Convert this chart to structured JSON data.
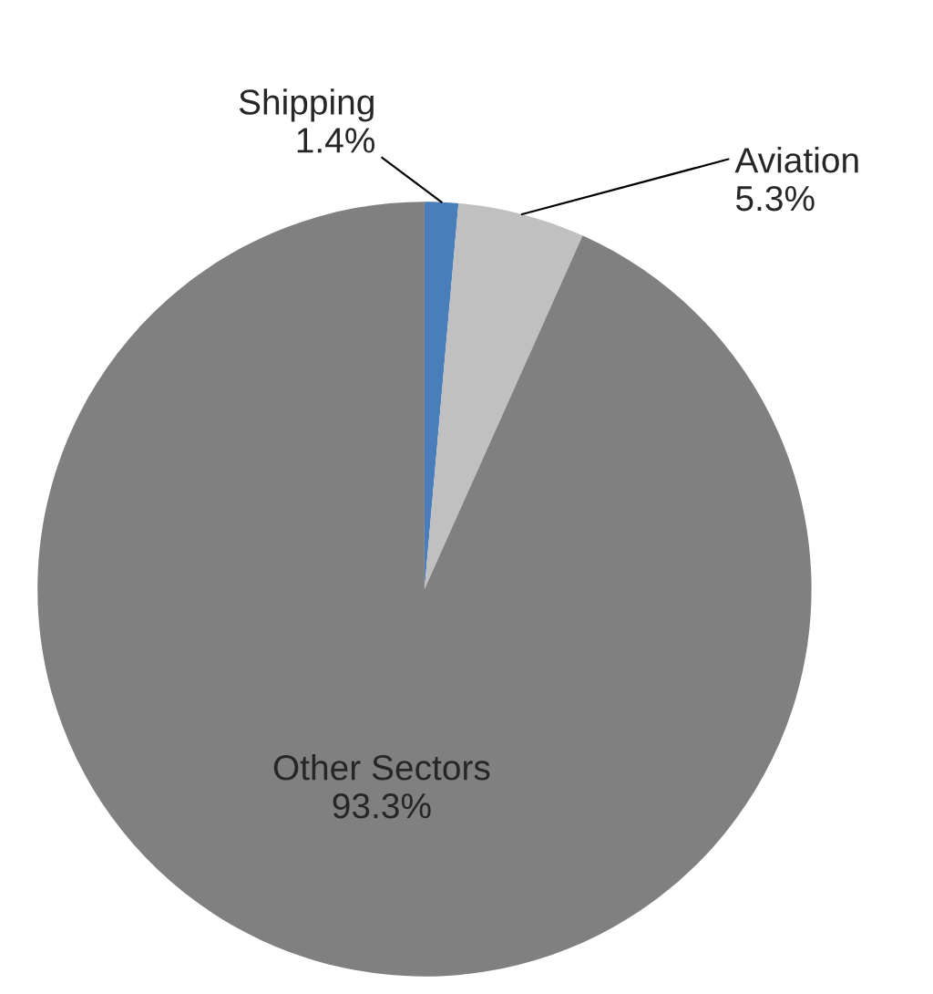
{
  "chart_data": {
    "type": "pie",
    "categories": [
      "Shipping",
      "Aviation",
      "Other Sectors"
    ],
    "values": [
      1.4,
      5.3,
      93.3
    ],
    "colors": [
      "#4a7ebb",
      "#c0c0c0",
      "#808080"
    ],
    "value_labels": [
      "1.4%",
      "5.3%",
      "93.3%"
    ],
    "legend": false
  }
}
